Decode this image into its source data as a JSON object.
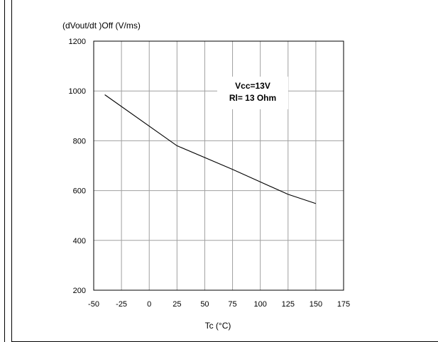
{
  "chart_data": {
    "type": "line",
    "title": "",
    "ylabel": "(dVout/dt )Off (V/ms)",
    "xlabel": "Tc (°C)",
    "xlim": [
      -50,
      175
    ],
    "ylim": [
      200,
      1200
    ],
    "x_ticks": [
      -50,
      -25,
      0,
      25,
      50,
      75,
      100,
      125,
      150,
      175
    ],
    "y_ticks": [
      200,
      400,
      600,
      800,
      1000,
      1200
    ],
    "grid": true,
    "legend": "none",
    "annotation": {
      "lines": [
        "Vcc=13V",
        "Rl= 13 Ohm"
      ]
    },
    "series": [
      {
        "x": [
          -40,
          25,
          75,
          125,
          150
        ],
        "y": [
          985,
          780,
          685,
          585,
          548
        ]
      }
    ],
    "colors": {
      "line": "#000000",
      "grid": "#a0a0a0",
      "frame": "#000000"
    }
  }
}
